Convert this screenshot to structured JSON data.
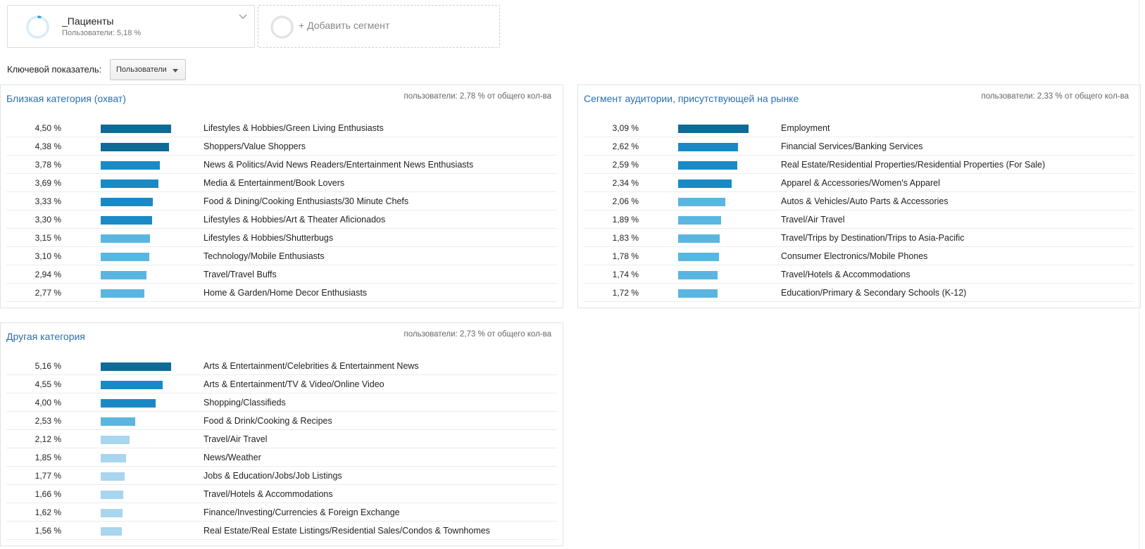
{
  "segment": {
    "name": "_Пациенты",
    "subtitle": "Пользователи: 5,18 %",
    "progress": 0.0518,
    "ring_color": "#2c9ed8"
  },
  "add_segment": {
    "label": "+ Добавить сегмент"
  },
  "key_metric": {
    "label": "Ключевой показатель:",
    "value": "Пользователи"
  },
  "panels": [
    {
      "title": "Близкая категория (охват)",
      "summary": "пользователи: 2,78 % от общего кол-ва",
      "rows": [
        {
          "pct": "4,50 %",
          "value": 4.5,
          "category": "Lifestyles & Hobbies/Green Living Enthusiasts"
        },
        {
          "pct": "4,38 %",
          "value": 4.38,
          "category": "Shoppers/Value Shoppers"
        },
        {
          "pct": "3,78 %",
          "value": 3.78,
          "category": "News & Politics/Avid News Readers/Entertainment News Enthusiasts"
        },
        {
          "pct": "3,69 %",
          "value": 3.69,
          "category": "Media & Entertainment/Book Lovers"
        },
        {
          "pct": "3,33 %",
          "value": 3.33,
          "category": "Food & Dining/Cooking Enthusiasts/30 Minute Chefs"
        },
        {
          "pct": "3,30 %",
          "value": 3.3,
          "category": "Lifestyles & Hobbies/Art & Theater Aficionados"
        },
        {
          "pct": "3,15 %",
          "value": 3.15,
          "category": "Lifestyles & Hobbies/Shutterbugs"
        },
        {
          "pct": "3,10 %",
          "value": 3.1,
          "category": "Technology/Mobile Enthusiasts"
        },
        {
          "pct": "2,94 %",
          "value": 2.94,
          "category": "Travel/Travel Buffs"
        },
        {
          "pct": "2,77 %",
          "value": 2.77,
          "category": "Home & Garden/Home Decor Enthusiasts"
        }
      ]
    },
    {
      "title": "Сегмент аудитории, присутствующей на рынке",
      "summary": "пользователи: 2,33 % от общего кол-ва",
      "rows": [
        {
          "pct": "3,09 %",
          "value": 3.09,
          "category": "Employment"
        },
        {
          "pct": "2,62 %",
          "value": 2.62,
          "category": "Financial Services/Banking Services"
        },
        {
          "pct": "2,59 %",
          "value": 2.59,
          "category": "Real Estate/Residential Properties/Residential Properties (For Sale)"
        },
        {
          "pct": "2,34 %",
          "value": 2.34,
          "category": "Apparel & Accessories/Women's Apparel"
        },
        {
          "pct": "2,06 %",
          "value": 2.06,
          "category": "Autos & Vehicles/Auto Parts & Accessories"
        },
        {
          "pct": "1,89 %",
          "value": 1.89,
          "category": "Travel/Air Travel"
        },
        {
          "pct": "1,83 %",
          "value": 1.83,
          "category": "Travel/Trips by Destination/Trips to Asia-Pacific"
        },
        {
          "pct": "1,78 %",
          "value": 1.78,
          "category": "Consumer Electronics/Mobile Phones"
        },
        {
          "pct": "1,74 %",
          "value": 1.74,
          "category": "Travel/Hotels & Accommodations"
        },
        {
          "pct": "1,72 %",
          "value": 1.72,
          "category": "Education/Primary & Secondary Schools (K-12)"
        }
      ]
    },
    {
      "title": "Другая категория",
      "summary": "пользователи: 2,73 % от общего кол-ва",
      "rows": [
        {
          "pct": "5,16 %",
          "value": 5.16,
          "category": "Arts & Entertainment/Celebrities & Entertainment News"
        },
        {
          "pct": "4,55 %",
          "value": 4.55,
          "category": "Arts & Entertainment/TV & Video/Online Video"
        },
        {
          "pct": "4,00 %",
          "value": 4.0,
          "category": "Shopping/Classifieds"
        },
        {
          "pct": "2,53 %",
          "value": 2.53,
          "category": "Food & Drink/Cooking & Recipes"
        },
        {
          "pct": "2,12 %",
          "value": 2.12,
          "category": "Travel/Air Travel"
        },
        {
          "pct": "1,85 %",
          "value": 1.85,
          "category": "News/Weather"
        },
        {
          "pct": "1,77 %",
          "value": 1.77,
          "category": "Jobs & Education/Jobs/Job Listings"
        },
        {
          "pct": "1,66 %",
          "value": 1.66,
          "category": "Travel/Hotels & Accommodations"
        },
        {
          "pct": "1,62 %",
          "value": 1.62,
          "category": "Finance/Investing/Currencies & Foreign Exchange"
        },
        {
          "pct": "1,56 %",
          "value": 1.56,
          "category": "Real Estate/Real Estate Listings/Residential Sales/Condos & Townhomes"
        }
      ]
    }
  ],
  "colors": {
    "bar_dark": "#0f6a96",
    "bar_mid": "#1a8ac6",
    "bar_light": "#5ab6e0",
    "bar_lightest": "#a7d6ee",
    "title_link": "#2a6fb0"
  }
}
